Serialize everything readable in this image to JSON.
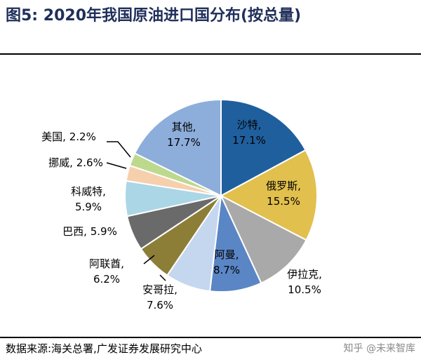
{
  "title": "图5: 2020年我国原油进口国分布(按总量)",
  "source": "数据来源:海关总署,广发证券发展研究中心",
  "watermark": "知乎 @未来智库",
  "chart_data": {
    "type": "pie",
    "title": "图5: 2020年我国原油进口国分布(按总量)",
    "unit": "%",
    "slices": [
      {
        "label": "沙特",
        "value": 17.1,
        "color": "#1f5f9e",
        "label_text": "沙特,",
        "value_text": "17.1%",
        "placement": "inside"
      },
      {
        "label": "俄罗斯",
        "value": 15.5,
        "color": "#e2c04e",
        "label_text": "俄罗斯,",
        "value_text": "15.5%",
        "placement": "inside"
      },
      {
        "label": "伊拉克",
        "value": 10.5,
        "color": "#a9a9a9",
        "label_text": "伊拉克,",
        "value_text": "10.5%",
        "placement": "outside"
      },
      {
        "label": "阿曼",
        "value": 8.7,
        "color": "#5a86c6",
        "label_text": "阿曼,",
        "value_text": "8.7%",
        "placement": "inside"
      },
      {
        "label": "安哥拉",
        "value": 7.6,
        "color": "#c4d7ee",
        "label_text": "安哥拉,",
        "value_text": "7.6%",
        "placement": "outside"
      },
      {
        "label": "阿联酋",
        "value": 6.2,
        "color": "#8c7e36",
        "label_text": "阿联酋,",
        "value_text": "6.2%",
        "placement": "outside"
      },
      {
        "label": "巴西",
        "value": 5.9,
        "color": "#6a6a6a",
        "label_text": "巴西, 5.9%",
        "value_text": "",
        "placement": "outside"
      },
      {
        "label": "科威特",
        "value": 5.9,
        "color": "#abd6e6",
        "label_text": "科威特,",
        "value_text": "5.9%",
        "placement": "outside"
      },
      {
        "label": "挪威",
        "value": 2.6,
        "color": "#f6cfad",
        "label_text": "挪威, 2.6%",
        "value_text": "",
        "placement": "outside"
      },
      {
        "label": "美国",
        "value": 2.2,
        "color": "#bdd98e",
        "label_text": "美国, 2.2%",
        "value_text": "",
        "placement": "outside"
      },
      {
        "label": "其他",
        "value": 17.7,
        "color": "#8daedb",
        "label_text": "其他,",
        "value_text": "17.7%",
        "placement": "inside"
      }
    ]
  }
}
